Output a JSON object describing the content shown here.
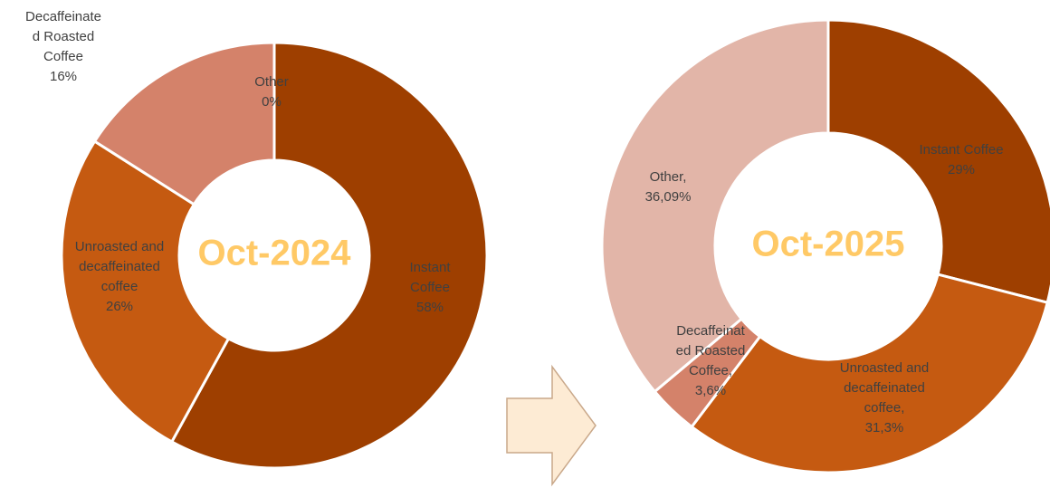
{
  "chart_data": [
    {
      "type": "donut",
      "title": "Oct-2024",
      "categories": [
        "Instant Coffee",
        "Unroasted and decaffeinated coffee",
        "Decaffeinated Roasted Coffee",
        "Other"
      ],
      "values": [
        58,
        26,
        16,
        0
      ],
      "value_labels": [
        "58%",
        "26%",
        "16%",
        "0%"
      ],
      "colors": [
        "#9e3f00",
        "#c55a11",
        "#d4826a",
        "#e2b5a8"
      ]
    },
    {
      "type": "donut",
      "title": "Oct-2025",
      "categories": [
        "Instant Coffee",
        "Unroasted and decaffeinated coffee,",
        "Decaffeinated Roasted Coffee,",
        "Other,"
      ],
      "values": [
        29,
        31.3,
        3.6,
        36.09
      ],
      "value_labels": [
        "29%",
        "31,3%",
        "3,6%",
        "36,09%"
      ],
      "colors": [
        "#9e3f00",
        "#c55a11",
        "#d4826a",
        "#e2b5a8"
      ]
    }
  ]
}
